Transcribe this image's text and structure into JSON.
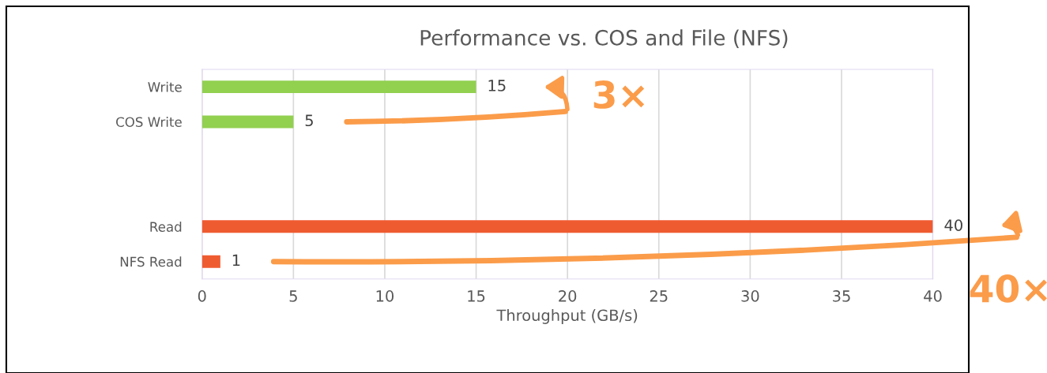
{
  "chart_data": {
    "type": "bar",
    "orientation": "horizontal",
    "title": "Performance vs. COS and File (NFS)",
    "xlabel": "Throughput (GB/s)",
    "categories": [
      "Write",
      "COS Write",
      null,
      null,
      "Read",
      "NFS Read"
    ],
    "values": [
      15,
      5,
      null,
      null,
      40,
      1
    ],
    "colors": [
      "#92d050",
      "#92d050",
      "#92d050",
      "#92d050",
      "#ef5b30",
      "#ef5b30"
    ],
    "xlim": [
      0,
      40
    ],
    "xticks": [
      0,
      5,
      10,
      15,
      20,
      25,
      30,
      35,
      40
    ],
    "grid": "x",
    "data_labels": true,
    "annotations": [
      "3×",
      "40×"
    ]
  }
}
